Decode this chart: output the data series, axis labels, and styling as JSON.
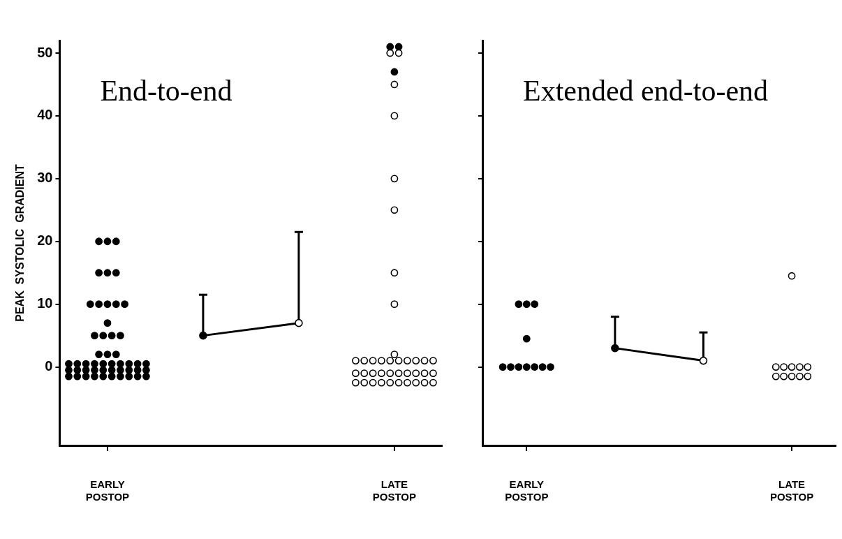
{
  "chart_data": [
    {
      "type": "scatter",
      "title": "End-to-end",
      "ylabel": "PEAK  SYSTOLIC  GRADIENT",
      "marker": "circle",
      "categories": [
        "EARLY POSTOP",
        null,
        null,
        "LATE POSTOP"
      ],
      "ylim": [
        -12.5,
        52
      ],
      "yticks": [
        0,
        10,
        20,
        30,
        40,
        50
      ],
      "series": [
        {
          "color": "#000000",
          "x": [
            "EARLY POSTOP",
            "EARLY POSTOP",
            "EARLY POSTOP",
            "EARLY POSTOP",
            "EARLY POSTOP",
            "EARLY POSTOP",
            "EARLY POSTOP",
            "EARLY POSTOP",
            "EARLY POSTOP",
            "EARLY POSTOP",
            "EARLY POSTOP",
            "EARLY POSTOP",
            "EARLY POSTOP",
            "EARLY POSTOP",
            "EARLY POSTOP",
            "EARLY POSTOP",
            "EARLY POSTOP",
            "EARLY POSTOP",
            "EARLY POSTOP",
            "EARLY POSTOP",
            "EARLY POSTOP",
            "EARLY POSTOP",
            "EARLY POSTOP",
            "EARLY POSTOP",
            "EARLY POSTOP",
            "EARLY POSTOP",
            "EARLY POSTOP",
            "EARLY POSTOP",
            "EARLY POSTOP",
            "EARLY POSTOP",
            "EARLY POSTOP",
            "EARLY POSTOP",
            "EARLY POSTOP",
            "EARLY POSTOP",
            "EARLY POSTOP",
            "EARLY POSTOP",
            "EARLY POSTOP",
            "EARLY POSTOP",
            "EARLY POSTOP",
            "EARLY POSTOP",
            "EARLY POSTOP",
            "EARLY POSTOP",
            "EARLY POSTOP",
            "EARLY POSTOP",
            "EARLY POSTOP",
            "EARLY POSTOP",
            "EARLY POSTOP",
            "EARLY POSTOP",
            "EARLY POSTOP"
          ],
          "values": [
            20,
            20,
            20,
            15,
            15,
            15,
            10,
            10,
            10,
            10,
            10,
            7,
            5,
            5,
            5,
            5,
            2,
            2,
            2,
            0.5,
            0.5,
            0.5,
            0.5,
            0.5,
            0.5,
            0.5,
            0.5,
            0.5,
            0.5,
            -0.5,
            -0.5,
            -0.5,
            -0.5,
            -0.5,
            -0.5,
            -0.5,
            -0.5,
            -0.5,
            -0.5,
            -1.5,
            -1.5,
            -1.5,
            -1.5,
            -1.5,
            -1.5,
            -1.5,
            -1.5,
            -1.5,
            -1.5
          ]
        },
        {
          "color": "#ffffff",
          "x": [
            "LATE POSTOP",
            "LATE POSTOP",
            "LATE POSTOP",
            "LATE POSTOP",
            "LATE POSTOP",
            "LATE POSTOP",
            "LATE POSTOP",
            "LATE POSTOP",
            "LATE POSTOP",
            "LATE POSTOP",
            "LATE POSTOP",
            "LATE POSTOP",
            "LATE POSTOP",
            "LATE POSTOP",
            "LATE POSTOP",
            "LATE POSTOP",
            "LATE POSTOP",
            "LATE POSTOP",
            "LATE POSTOP",
            "LATE POSTOP",
            "LATE POSTOP",
            "LATE POSTOP",
            "LATE POSTOP",
            "LATE POSTOP",
            "LATE POSTOP",
            "LATE POSTOP",
            "LATE POSTOP",
            "LATE POSTOP",
            "LATE POSTOP",
            "LATE POSTOP",
            "LATE POSTOP",
            "LATE POSTOP",
            "LATE POSTOP",
            "LATE POSTOP",
            "LATE POSTOP",
            "LATE POSTOP",
            "LATE POSTOP",
            "LATE POSTOP",
            "LATE POSTOP"
          ],
          "values": [
            50,
            50,
            45,
            40,
            30,
            25,
            15,
            10,
            2,
            1,
            1,
            1,
            1,
            1,
            1,
            1,
            1,
            1,
            1,
            -1,
            -1,
            -1,
            -1,
            -1,
            -1,
            -1,
            -1,
            -1,
            -1,
            -2.5,
            -2.5,
            -2.5,
            -2.5,
            -2.5,
            -2.5,
            -2.5,
            -2.5,
            -2.5,
            -2.5
          ]
        },
        {
          "color": "#000000",
          "x": [
            "LATE POSTOP",
            "LATE POSTOP",
            "LATE POSTOP"
          ],
          "values": [
            51,
            51,
            47
          ]
        },
        {
          "type": "line",
          "color": "#000000",
          "colors": [
            null,
            "#000000",
            "#ffffff",
            null
          ],
          "values": [
            null,
            5,
            7,
            null
          ],
          "errors": [
            null,
            [
              5,
              11.5
            ],
            [
              7,
              21.5
            ],
            null
          ]
        }
      ]
    },
    {
      "type": "scatter",
      "title": "Extended end-to-end",
      "marker": "circle",
      "tick_labels": "x",
      "categories": [
        "EARLY POSTOP",
        null,
        null,
        "LATE POSTOP"
      ],
      "ylim": [
        -12.5,
        52
      ],
      "yticks": [
        {
          "value": 0,
          "label": null
        },
        {
          "value": 10,
          "label": null
        },
        {
          "value": 20,
          "label": null
        },
        {
          "value": 30,
          "label": null
        },
        {
          "value": 40,
          "label": null
        },
        {
          "value": 50,
          "label": null
        }
      ],
      "series": [
        {
          "color": "#000000",
          "x": [
            "EARLY POSTOP",
            "EARLY POSTOP",
            "EARLY POSTOP",
            "EARLY POSTOP",
            "EARLY POSTOP",
            "EARLY POSTOP",
            "EARLY POSTOP",
            "EARLY POSTOP",
            "EARLY POSTOP",
            "EARLY POSTOP",
            "EARLY POSTOP"
          ],
          "values": [
            10,
            10,
            10,
            4.5,
            0,
            0,
            0,
            0,
            0,
            0,
            0
          ]
        },
        {
          "color": "#ffffff",
          "x": [
            "LATE POSTOP",
            "LATE POSTOP",
            "LATE POSTOP",
            "LATE POSTOP",
            "LATE POSTOP",
            "LATE POSTOP",
            "LATE POSTOP",
            "LATE POSTOP",
            "LATE POSTOP",
            "LATE POSTOP",
            "LATE POSTOP"
          ],
          "values": [
            14.5,
            0,
            0,
            0,
            0,
            0,
            -1.5,
            -1.5,
            -1.5,
            -1.5,
            -1.5
          ]
        },
        {
          "type": "line",
          "color": "#000000",
          "colors": [
            null,
            "#000000",
            "#ffffff",
            null
          ],
          "values": [
            null,
            3,
            1,
            null
          ],
          "errors": [
            null,
            [
              3,
              8
            ],
            [
              1,
              5.5
            ],
            null
          ]
        }
      ]
    }
  ]
}
